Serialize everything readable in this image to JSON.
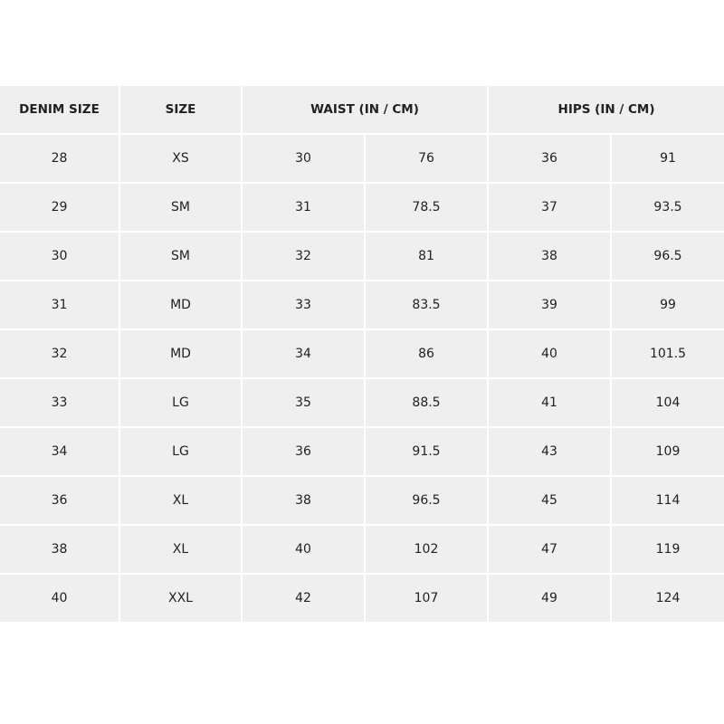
{
  "headers": [
    "DENIM SIZE",
    "SIZE",
    "WAIST (IN / CM)",
    "HIPS (IN / CM)"
  ],
  "rows": [
    [
      "28",
      "XS",
      "30",
      "76",
      "36",
      "91"
    ],
    [
      "29",
      "SM",
      "31",
      "78.5",
      "37",
      "93.5"
    ],
    [
      "30",
      "SM",
      "32",
      "81",
      "38",
      "96.5"
    ],
    [
      "31",
      "MD",
      "33",
      "83.5",
      "39",
      "99"
    ],
    [
      "32",
      "MD",
      "34",
      "86",
      "40",
      "101.5"
    ],
    [
      "33",
      "LG",
      "35",
      "88.5",
      "41",
      "104"
    ],
    [
      "34",
      "LG",
      "36",
      "91.5",
      "43",
      "109"
    ],
    [
      "36",
      "XL",
      "38",
      "96.5",
      "45",
      "114"
    ],
    [
      "38",
      "XL",
      "40",
      "102",
      "47",
      "119"
    ],
    [
      "40",
      "XXL",
      "42",
      "107",
      "49",
      "124"
    ]
  ]
}
